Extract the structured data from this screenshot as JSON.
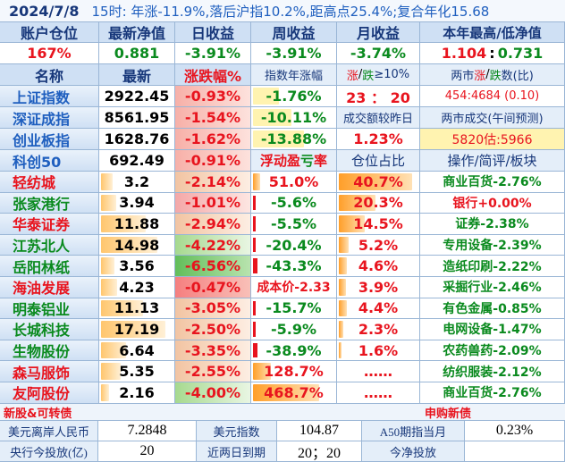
{
  "title": {
    "date": "2024/7/8",
    "text": "15时: 年涨-11.9%,落后沪指10.2%,距高点25.4%;复合年化15.68"
  },
  "account": {
    "headers": [
      "账户仓位",
      "最新净值",
      "日收益",
      "周收益",
      "月收益",
      "本年最高/低净值"
    ],
    "position": "167%",
    "nav": "0.881",
    "day_return": "-3.91%",
    "week_return": "-3.91%",
    "month_return": "-3.74%",
    "year_high": "1.104",
    "year_sep": ":",
    "year_low": "0.731"
  },
  "index_header": [
    "名称",
    "最新",
    "涨跌幅%",
    "指数年涨幅",
    "涨",
    "/",
    "跌",
    "≥10%",
    "两市",
    "涨",
    "/",
    "跌",
    "数(比)"
  ],
  "indices": [
    {
      "name": "上证指数",
      "price": "2922.45",
      "change": "-0.93%",
      "extra1": "-1.76%",
      "extra2": "23 ： 20",
      "extra3": "454:4684 (0.10)"
    },
    {
      "name": "深证成指",
      "price": "8561.95",
      "change": "-1.54%",
      "extra1": "-10.11%",
      "extra2": "成交额较昨日",
      "extra3": "两市成交(午间预测)"
    },
    {
      "name": "创业板指",
      "price": "1628.76",
      "change": "-1.62%",
      "extra1": "-13.88%",
      "extra2": "1.23%",
      "extra3": "5820估:5966"
    },
    {
      "name": "科创50",
      "price": "692.49",
      "change": "-0.91%",
      "extra1": "浮动盈亏率",
      "extra2": "仓位占比",
      "extra3": "操作/简评/板块"
    }
  ],
  "float_label": {
    "a": "浮动",
    "b": "盈",
    "c": "亏",
    "d": "率"
  },
  "holdings": [
    {
      "name": "轻纺城",
      "price": "3.2",
      "change": "-2.14%",
      "pl": "51.0%",
      "weight": "40.7%",
      "note": "商业百货-2.76%"
    },
    {
      "name": "张家港行",
      "price": "3.94",
      "change": "-1.01%",
      "pl": "-5.6%",
      "weight": "20.3%",
      "note": "银行+0.00%"
    },
    {
      "name": "华泰证券",
      "price": "11.88",
      "change": "-2.94%",
      "pl": "-5.5%",
      "weight": "14.5%",
      "note": "证券-2.38%"
    },
    {
      "name": "江苏北人",
      "price": "14.98",
      "change": "-4.22%",
      "pl": "-20.4%",
      "weight": "5.2%",
      "note": "专用设备-2.39%"
    },
    {
      "name": "岳阳林纸",
      "price": "3.56",
      "change": "-6.56%",
      "pl": "-43.3%",
      "weight": "4.6%",
      "note": "造纸印刷-2.22%"
    },
    {
      "name": "海油发展",
      "price": "4.23",
      "change": "-0.47%",
      "pl": "成本价-2.33",
      "weight": "3.9%",
      "note": "采掘行业-2.46%"
    },
    {
      "name": "明泰铝业",
      "price": "11.13",
      "change": "-3.05%",
      "pl": "-15.7%",
      "weight": "4.4%",
      "note": "有色金属-0.85%"
    },
    {
      "name": "长城科技",
      "price": "17.19",
      "change": "-2.50%",
      "pl": "-5.9%",
      "weight": "2.3%",
      "note": "电网设备-1.47%"
    },
    {
      "name": "生物股份",
      "price": "6.64",
      "change": "-3.35%",
      "pl": "-38.9%",
      "weight": "1.6%",
      "note": "农药兽药-2.09%"
    },
    {
      "name": "森马服饰",
      "price": "5.35",
      "change": "-2.55%",
      "pl": "128.7%",
      "weight": "……",
      "note": "纺织服装-2.12%"
    },
    {
      "name": "友阿股份",
      "price": "2.16",
      "change": "-4.00%",
      "pl": "468.7%",
      "weight": "……",
      "note": "商业百货-2.76%"
    }
  ],
  "footer": {
    "new_stock": "新股&可转债",
    "new_bond": "申购新债",
    "fx_label": "美元离岸人民币",
    "fx_value": "7.2848",
    "dxy_label": "美元指数",
    "dxy_value": "104.87",
    "a50_label": "A50期指当月",
    "a50_value": "0.23%",
    "pboc_label": "央行今投放(亿)",
    "pboc_value": "20",
    "expire_label": "近两日到期",
    "expire_value": "20；20",
    "net_label": "今净投放",
    "net_value": ""
  },
  "colors": {
    "up": "#e8141e",
    "down": "#0a8a1e",
    "accent": "#1f5fbf",
    "header": "#cfe0f4"
  }
}
